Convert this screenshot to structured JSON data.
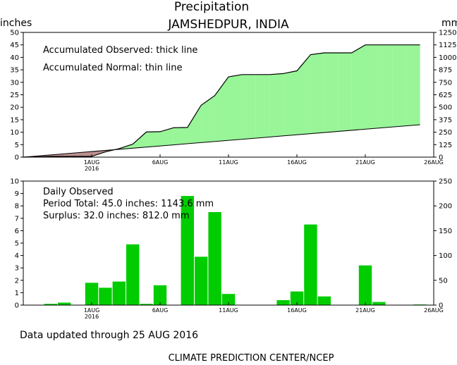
{
  "title": "Precipitation",
  "subtitle": "JAMSHEDPUR, INDIA",
  "left_unit": "inches",
  "right_unit": "mm",
  "legend": {
    "line1": "Accumulated Observed: thick line",
    "line2": "Accumulated Normal: thin line"
  },
  "daily": {
    "line1": "Daily Observed",
    "line2": "Period Total:    45.0 inches:  1143.6 mm",
    "line3": "Surplus:    32.0 inches:   812.0 mm"
  },
  "footer_updated": "Data updated through 25 AUG 2016",
  "footer_credit": "CLIMATE PREDICTION CENTER/NCEP",
  "colors": {
    "surplus_fill": "#98f598",
    "deficit_fill": "#bc8f8f",
    "bar": "#00cc00",
    "line": "#000000"
  },
  "chart_data": [
    {
      "type": "area",
      "name": "Accumulated precipitation",
      "x_ticks": [
        {
          "label": "1AUG",
          "sub": "2016"
        },
        {
          "label": "6AUG",
          "sub": ""
        },
        {
          "label": "11AUG",
          "sub": ""
        },
        {
          "label": "16AUG",
          "sub": ""
        },
        {
          "label": "21AUG",
          "sub": ""
        },
        {
          "label": "26AUG",
          "sub": ""
        }
      ],
      "x_tick_days": [
        1,
        6,
        11,
        16,
        21,
        26
      ],
      "x_range": [
        -4,
        26
      ],
      "y_left": {
        "label": "inches",
        "ticks": [
          0,
          5,
          10,
          15,
          20,
          25,
          30,
          35,
          40,
          45,
          50
        ],
        "range": [
          0,
          50
        ]
      },
      "y_right": {
        "label": "mm",
        "ticks": [
          0,
          125,
          250,
          375,
          500,
          625,
          750,
          875,
          1000,
          1125,
          1250
        ],
        "range": [
          0,
          1250
        ]
      },
      "series": [
        {
          "name": "Accumulated Observed",
          "x": [
            -4,
            -3,
            -2,
            -1,
            0,
            1,
            2,
            3,
            4,
            5,
            6,
            7,
            8,
            9,
            10,
            11,
            12,
            13,
            14,
            15,
            16,
            17,
            18,
            19,
            20,
            21,
            22,
            23,
            24,
            25
          ],
          "y": [
            0,
            0.1,
            0.3,
            0.3,
            0.3,
            0.3,
            2.1,
            3.4,
            5.2,
            10.1,
            10.2,
            11.8,
            11.9,
            20.8,
            24.7,
            32.2,
            33.1,
            33.1,
            33.1,
            33.5,
            34.6,
            41.1,
            41.8,
            41.8,
            41.8,
            45.0,
            45.0,
            45.0,
            45.0,
            45.0
          ]
        },
        {
          "name": "Accumulated Normal",
          "x": [
            -4,
            25
          ],
          "y": [
            0,
            13.0
          ]
        }
      ]
    },
    {
      "type": "bar",
      "name": "Daily Observed",
      "x": [
        -2,
        -1,
        1,
        2,
        3,
        4,
        5,
        6,
        8,
        9,
        10,
        11,
        15,
        16,
        17,
        18,
        21,
        22,
        25
      ],
      "values": [
        0.1,
        0.2,
        1.8,
        1.4,
        1.9,
        4.9,
        0.1,
        1.6,
        8.8,
        3.9,
        7.5,
        0.9,
        0.4,
        1.1,
        6.5,
        0.7,
        3.2,
        0.25,
        0.05
      ],
      "x_range": [
        -4,
        26
      ],
      "y_left": {
        "ticks": [
          0,
          1,
          2,
          3,
          4,
          5,
          6,
          7,
          8,
          9,
          10
        ],
        "range": [
          0,
          10
        ]
      },
      "y_right": {
        "ticks": [
          0,
          50,
          100,
          150,
          200,
          250
        ],
        "range": [
          0,
          250
        ]
      }
    }
  ]
}
